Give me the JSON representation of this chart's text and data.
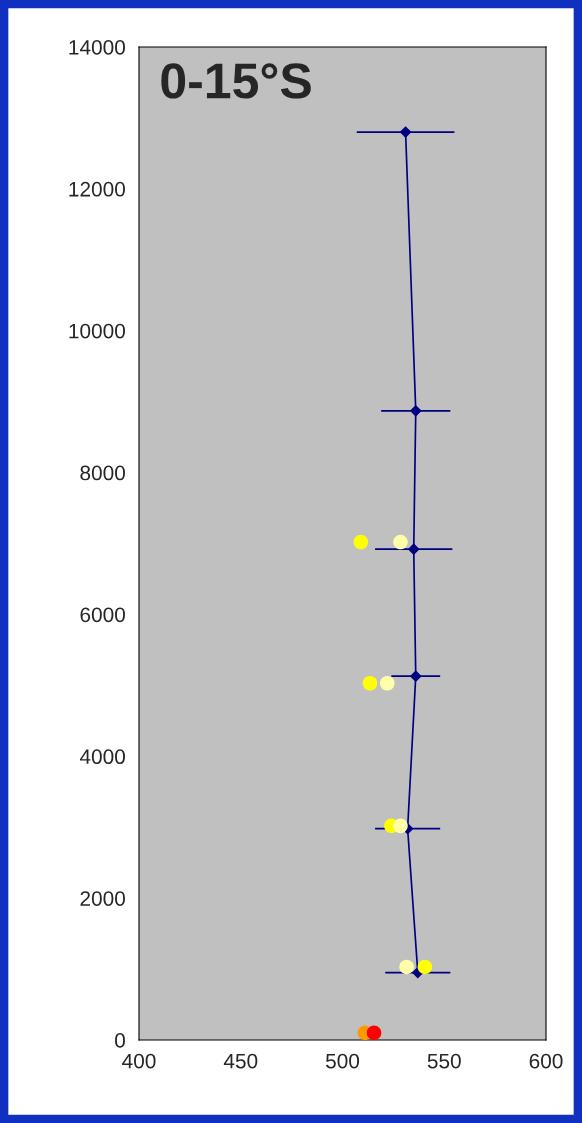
{
  "chart_data": {
    "type": "line",
    "title": "0-15°S",
    "xlim": [
      400,
      600
    ],
    "xticks": [
      400,
      450,
      500,
      550,
      600
    ],
    "ylim": [
      0,
      14000
    ],
    "yticks": [
      0,
      2000,
      4000,
      6000,
      8000,
      10000,
      12000,
      14000
    ],
    "grid": false,
    "legend": false,
    "series": [
      {
        "color": "#000080",
        "marker": "diamond",
        "line_style": "solid",
        "x": [
          531,
          536,
          535,
          536,
          532,
          537
        ],
        "values": [
          12800,
          8870,
          6920,
          5130,
          2980,
          950
        ],
        "xerrors": [
          24,
          17,
          19,
          12,
          16,
          16
        ]
      },
      {
        "type": "scatter",
        "color": "#ffff00",
        "marker": "circle",
        "x": [
          509,
          513.5,
          524,
          540.5
        ],
        "values": [
          7020,
          5030,
          3020,
          1030
        ]
      },
      {
        "type": "scatter",
        "color": "#ffffaa",
        "marker": "circle",
        "x": [
          528.5,
          522,
          528.5,
          531.5
        ],
        "values": [
          7020,
          5030,
          3020,
          1030
        ]
      },
      {
        "type": "scatter",
        "color": "#ff9900",
        "marker": "circle",
        "x": [
          511
        ],
        "values": [
          100
        ]
      },
      {
        "type": "scatter",
        "color": "#ff0000",
        "marker": "circle",
        "x": [
          515.5
        ],
        "values": [
          100
        ]
      }
    ]
  }
}
